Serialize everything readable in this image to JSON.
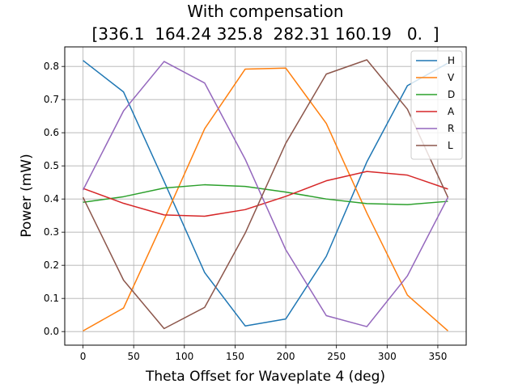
{
  "chart_data": {
    "type": "line",
    "title": "With compensation",
    "subtitle": "[336.1  164.24 325.8  282.31 160.19   0.  ]",
    "xlabel": "Theta Offset for Waveplate 4 (deg)",
    "ylabel": "Power (mW)",
    "xlim": [
      -18,
      378
    ],
    "ylim": [
      -0.041,
      0.859
    ],
    "xticks": [
      0,
      50,
      100,
      150,
      200,
      250,
      300,
      350
    ],
    "yticks": [
      0.0,
      0.1,
      0.2,
      0.3,
      0.4,
      0.5,
      0.6,
      0.7,
      0.8
    ],
    "ytick_labels": [
      "0.0",
      "0.1",
      "0.2",
      "0.3",
      "0.4",
      "0.5",
      "0.6",
      "0.7",
      "0.8"
    ],
    "grid": true,
    "legend_position": "top-right",
    "x": [
      0,
      40,
      80,
      120,
      160,
      200,
      240,
      280,
      320,
      360
    ],
    "series": [
      {
        "name": "H",
        "color": "#1f77b4",
        "values": [
          0.818,
          0.723,
          0.453,
          0.178,
          0.017,
          0.038,
          0.227,
          0.512,
          0.742,
          0.81
        ]
      },
      {
        "name": "V",
        "color": "#ff7f0e",
        "values": [
          0.002,
          0.071,
          0.338,
          0.612,
          0.792,
          0.795,
          0.628,
          0.358,
          0.11,
          0.002
        ]
      },
      {
        "name": "D",
        "color": "#2ca02c",
        "values": [
          0.39,
          0.407,
          0.433,
          0.443,
          0.438,
          0.421,
          0.4,
          0.386,
          0.383,
          0.393
        ]
      },
      {
        "name": "A",
        "color": "#d62728",
        "values": [
          0.432,
          0.387,
          0.352,
          0.348,
          0.368,
          0.408,
          0.455,
          0.483,
          0.472,
          0.43
        ]
      },
      {
        "name": "R",
        "color": "#9467bd",
        "values": [
          0.427,
          0.666,
          0.815,
          0.75,
          0.52,
          0.247,
          0.048,
          0.015,
          0.168,
          0.405
        ]
      },
      {
        "name": "L",
        "color": "#8c564b",
        "values": [
          0.405,
          0.155,
          0.009,
          0.073,
          0.297,
          0.568,
          0.777,
          0.82,
          0.671,
          0.405
        ]
      }
    ]
  }
}
